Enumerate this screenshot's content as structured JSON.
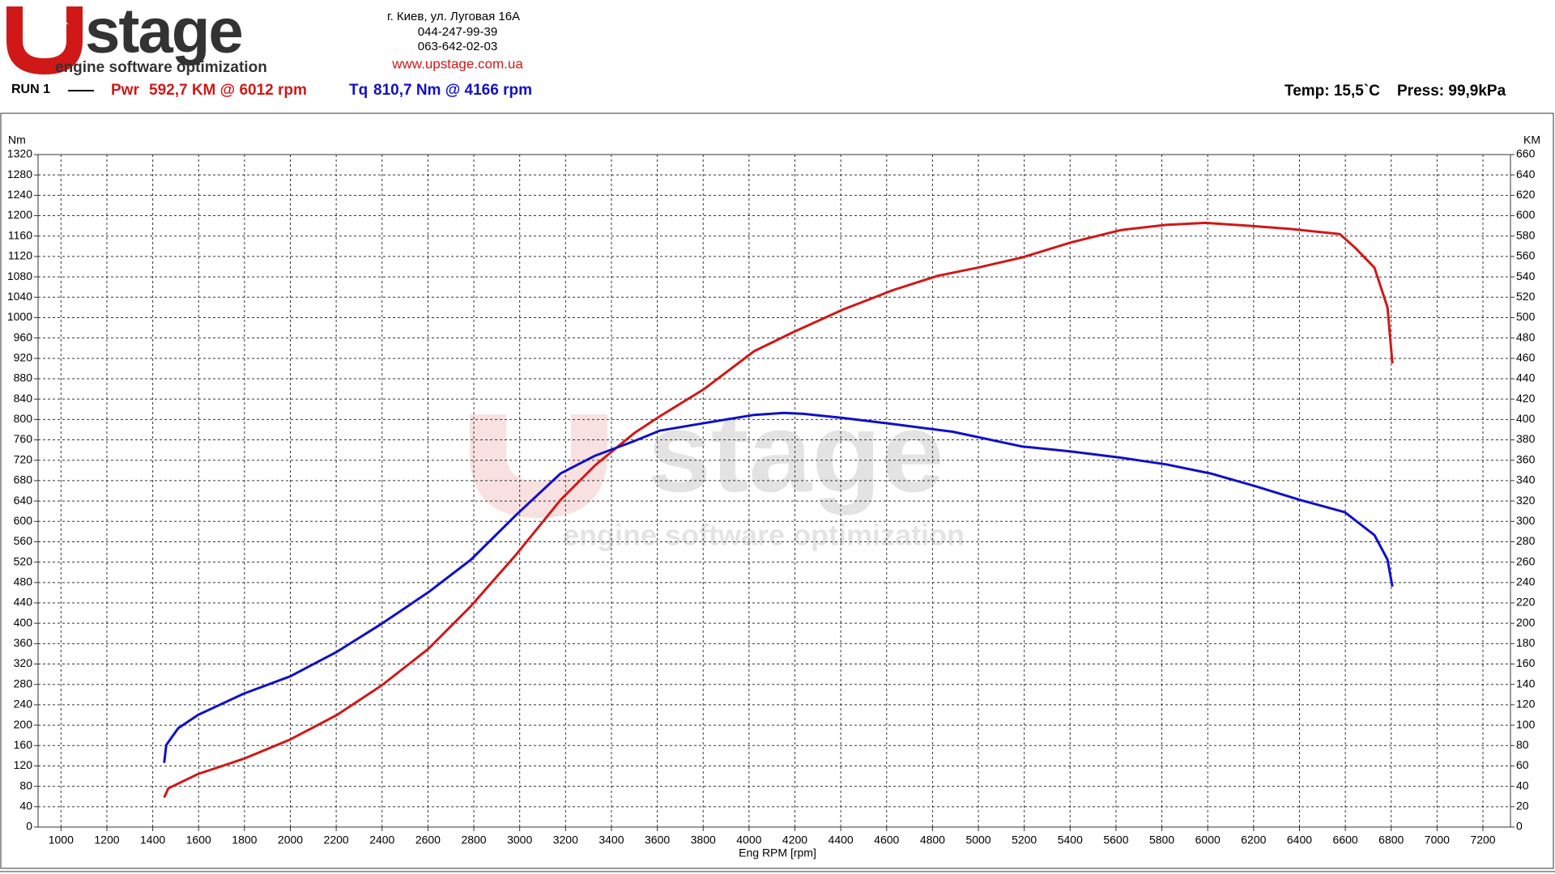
{
  "header": {
    "logo": {
      "word": "stage",
      "tagline": "engine software optimization"
    },
    "contact": [
      "г. Киев, ул. Луговая 16А",
      "044-247-99-39",
      "063-642-02-03",
      "www.upstage.com.ua"
    ],
    "run": "RUN 1",
    "peaks": [
      "592,7 KM @ 6012 rpm",
      "810,7 Nm @ 4166 rpm"
    ],
    "conditions": [
      "Temp: 15,5`C",
      "Press: 99,9kPa"
    ]
  },
  "chart_data": {
    "type": "line",
    "ylabel": "Nm",
    "y2label": "KM",
    "xlabel": "Eng RPM [rpm]",
    "xlim": [
      900,
      7320
    ],
    "xticks": [
      1000,
      1200,
      1400,
      1600,
      1800,
      2000,
      2200,
      2400,
      2600,
      2800,
      3000,
      3200,
      3400,
      3600,
      3800,
      4000,
      4200,
      4400,
      4600,
      4800,
      5000,
      5200,
      5400,
      5600,
      5800,
      6000,
      6200,
      6400,
      6600,
      6800,
      7000,
      7200
    ],
    "ylim": [
      0,
      1320
    ],
    "yticks": [
      0,
      40,
      80,
      120,
      160,
      200,
      240,
      280,
      320,
      360,
      400,
      440,
      480,
      520,
      560,
      600,
      640,
      680,
      720,
      760,
      800,
      840,
      880,
      920,
      960,
      1000,
      1040,
      1080,
      1120,
      1160,
      1200,
      1240,
      1280,
      1320
    ],
    "y2lim": [
      0,
      660
    ],
    "y2ticks": [
      0,
      20,
      40,
      60,
      80,
      100,
      120,
      140,
      160,
      180,
      200,
      220,
      240,
      260,
      280,
      300,
      320,
      340,
      360,
      380,
      400,
      420,
      440,
      460,
      480,
      500,
      520,
      540,
      560,
      580,
      600,
      620,
      640,
      660
    ],
    "grid": true,
    "series": [
      {
        "name": "Pwr",
        "color": "#d01818",
        "axis": "y2",
        "x": [
          1450,
          1468,
          1597,
          1797,
          2000,
          2203,
          2398,
          2602,
          2788,
          2983,
          3178,
          3329,
          3502,
          3610,
          3805,
          4022,
          4195,
          4411,
          4628,
          4823,
          4996,
          5190,
          5407,
          5623,
          5818,
          5991,
          6186,
          6359,
          6576,
          6641,
          6727,
          6784,
          6805
        ],
        "values": [
          29,
          38,
          52,
          67,
          86,
          110,
          139,
          175,
          217,
          267,
          321,
          355,
          387,
          403,
          430,
          467,
          486,
          508,
          527,
          541,
          549,
          559,
          574,
          586,
          591,
          593,
          590,
          587,
          582,
          569,
          549,
          510,
          455
        ]
      },
      {
        "name": "Tq",
        "color": "#1010c8",
        "x": [
          1450,
          1459,
          1511,
          1597,
          1797,
          2000,
          2203,
          2398,
          2602,
          2788,
          2983,
          3178,
          3329,
          3502,
          3610,
          3805,
          4022,
          4151,
          4238,
          4411,
          4628,
          4888,
          5190,
          5407,
          5623,
          5818,
          6013,
          6208,
          6403,
          6598,
          6727,
          6784,
          6805
        ],
        "values": [
          126,
          161,
          194,
          220,
          262,
          296,
          344,
          399,
          461,
          525,
          612,
          694,
          729,
          758,
          778,
          793,
          809,
          813,
          811,
          803,
          791,
          776,
          747,
          737,
          725,
          712,
          694,
          669,
          642,
          618,
          573,
          525,
          472
        ]
      }
    ]
  }
}
